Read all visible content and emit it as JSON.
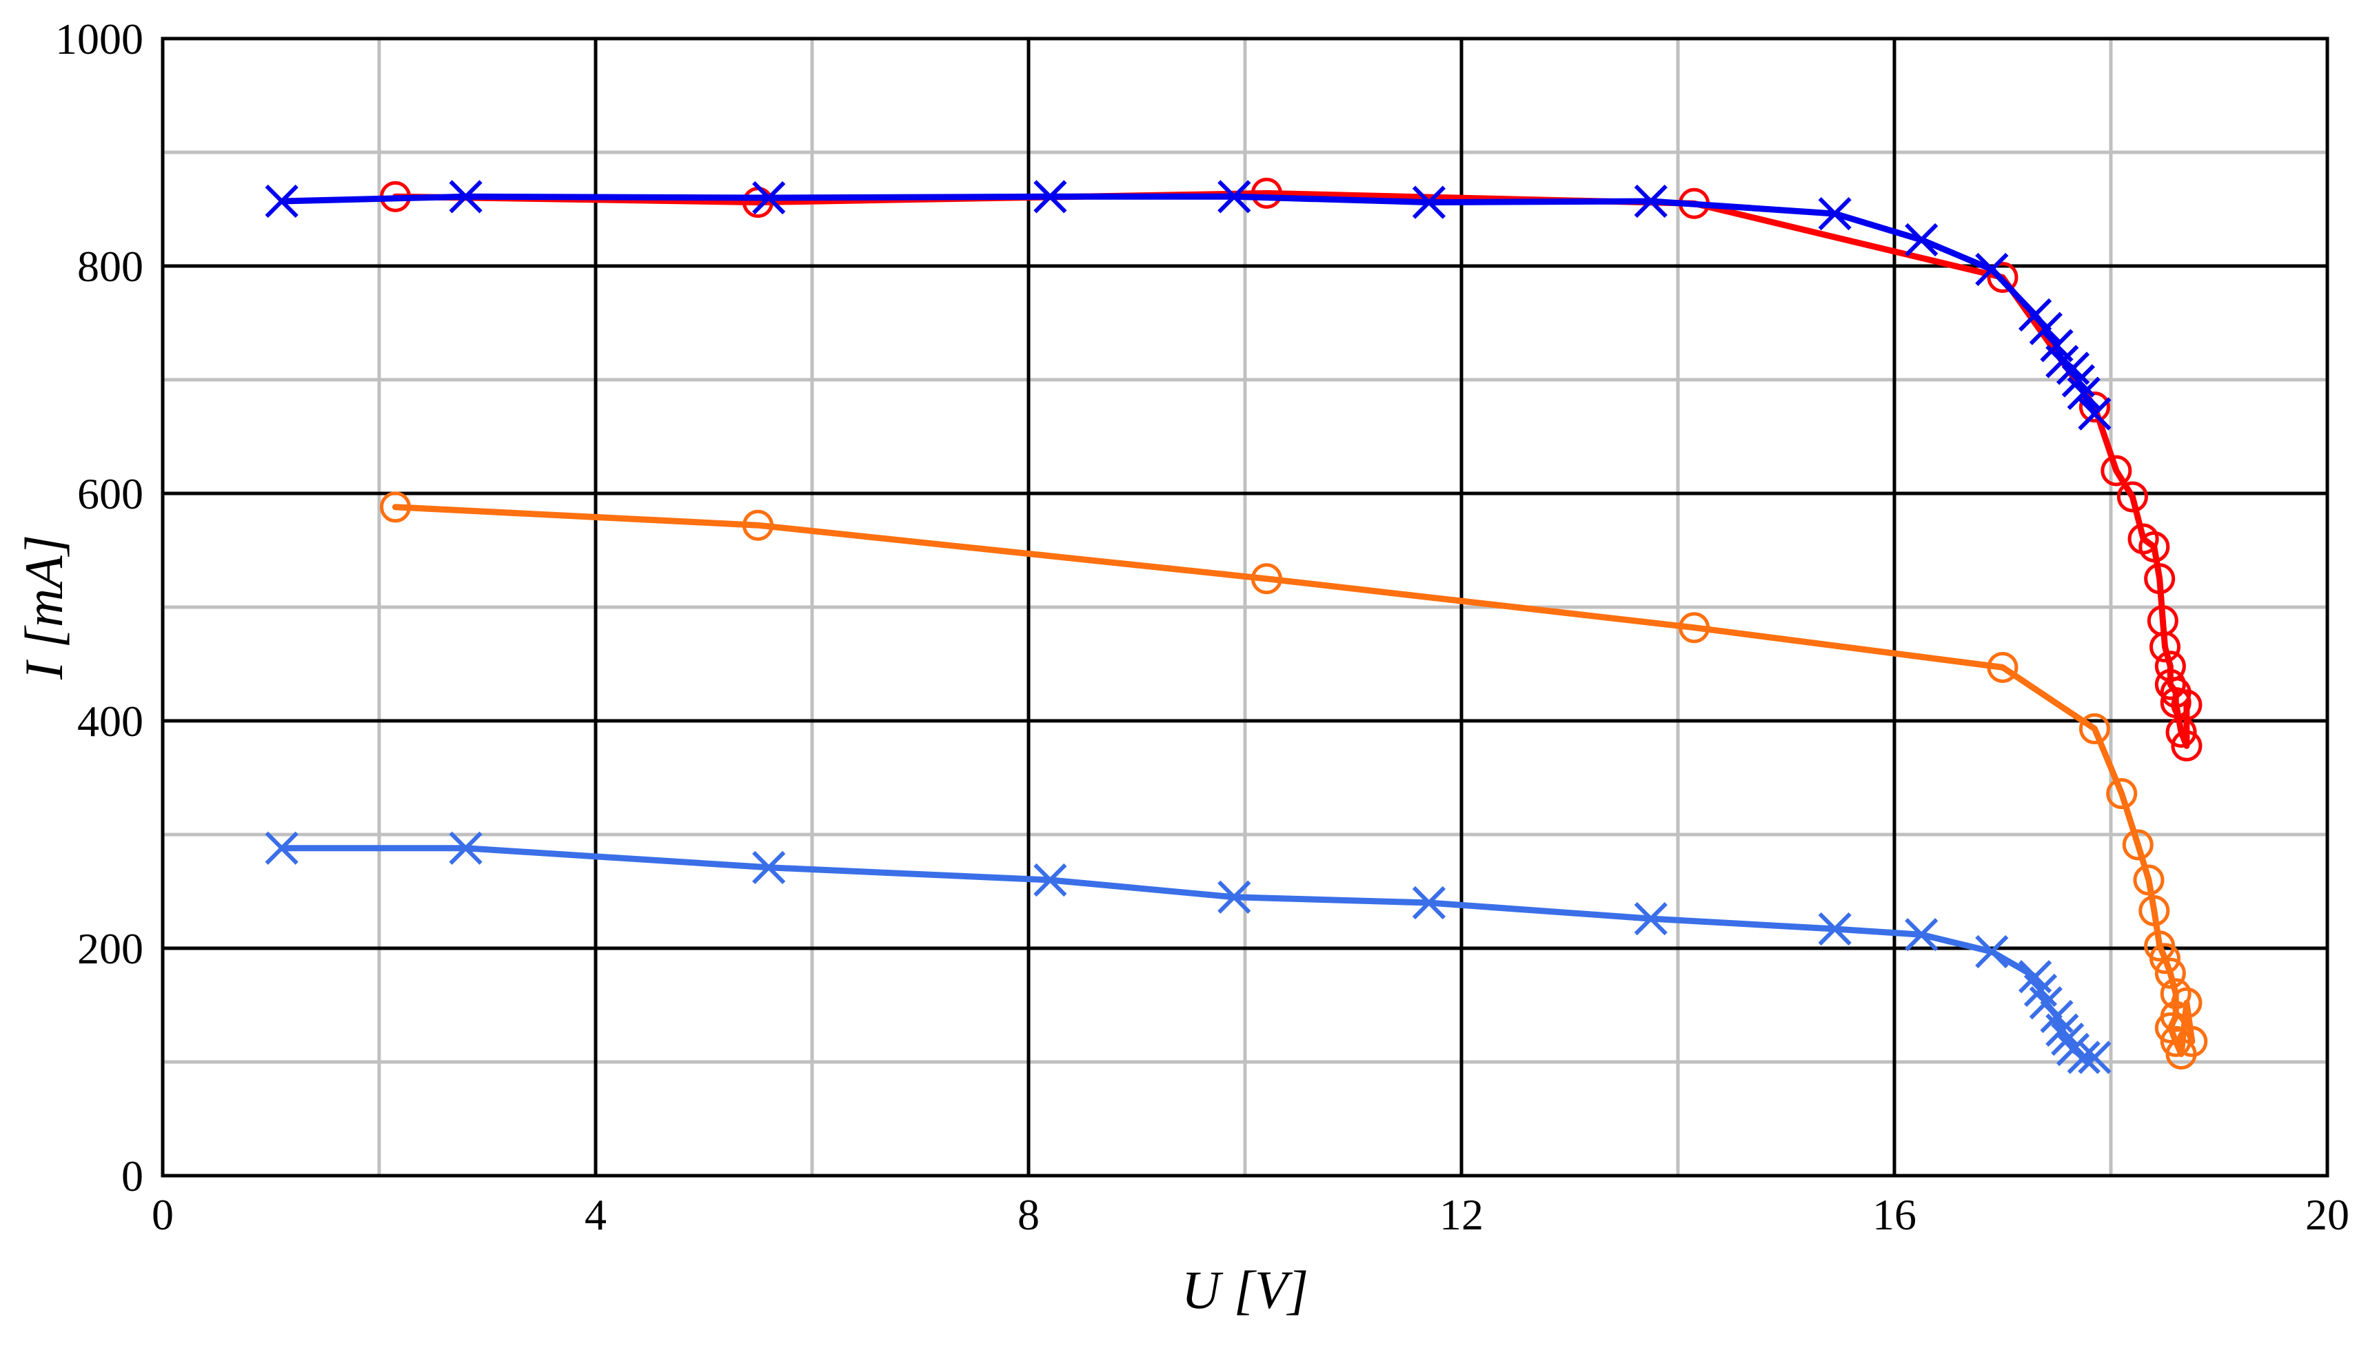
{
  "chart_data": {
    "type": "line",
    "title": "",
    "xlabel": "U [V]",
    "ylabel": "I [mA]",
    "xlim": [
      0,
      20
    ],
    "ylim": [
      0,
      1000
    ],
    "x_ticks": [
      0,
      4,
      8,
      12,
      16,
      20
    ],
    "y_ticks": [
      0,
      200,
      400,
      600,
      800,
      1000
    ],
    "x_tick_labels": [
      "0",
      "4",
      "8",
      "12",
      "16",
      "20"
    ],
    "y_tick_labels": [
      "0",
      "200",
      "400",
      "600",
      "800",
      "1000"
    ],
    "grid": true,
    "legend": "none",
    "series": [
      {
        "color": "#ff0000",
        "marker": "circle",
        "points": [
          [
            2.15,
            861
          ],
          [
            5.5,
            856
          ],
          [
            10.2,
            864
          ],
          [
            14.15,
            855
          ],
          [
            17.0,
            790
          ],
          [
            17.85,
            676
          ],
          [
            18.05,
            620
          ],
          [
            18.2,
            597
          ],
          [
            18.3,
            560
          ],
          [
            18.4,
            553
          ],
          [
            18.45,
            525
          ],
          [
            18.48,
            488
          ],
          [
            18.5,
            465
          ],
          [
            18.55,
            448
          ],
          [
            18.55,
            432
          ],
          [
            18.6,
            425
          ],
          [
            18.6,
            416
          ],
          [
            18.65,
            390
          ],
          [
            18.7,
            378
          ],
          [
            18.7,
            414
          ]
        ]
      },
      {
        "color": "#0000ee",
        "marker": "cross",
        "points": [
          [
            1.1,
            857
          ],
          [
            2.8,
            861
          ],
          [
            5.6,
            860
          ],
          [
            8.2,
            861
          ],
          [
            9.9,
            861
          ],
          [
            11.7,
            856
          ],
          [
            13.75,
            857
          ],
          [
            15.45,
            846
          ],
          [
            16.25,
            823
          ],
          [
            16.9,
            797
          ],
          [
            17.3,
            757
          ],
          [
            17.4,
            745
          ],
          [
            17.5,
            730
          ],
          [
            17.55,
            716
          ],
          [
            17.65,
            710
          ],
          [
            17.7,
            699
          ],
          [
            17.75,
            688
          ],
          [
            17.85,
            670
          ]
        ]
      },
      {
        "color": "#ff7010",
        "marker": "circle",
        "points": [
          [
            2.15,
            588
          ],
          [
            5.5,
            572
          ],
          [
            10.2,
            525
          ],
          [
            14.15,
            482
          ],
          [
            17.0,
            447
          ],
          [
            17.85,
            393
          ],
          [
            18.1,
            336
          ],
          [
            18.25,
            291
          ],
          [
            18.35,
            260
          ],
          [
            18.4,
            233
          ],
          [
            18.45,
            202
          ],
          [
            18.5,
            191
          ],
          [
            18.55,
            178
          ],
          [
            18.6,
            160
          ],
          [
            18.6,
            140
          ],
          [
            18.55,
            130
          ],
          [
            18.6,
            118
          ],
          [
            18.65,
            107
          ],
          [
            18.7,
            152
          ],
          [
            18.75,
            118
          ]
        ]
      },
      {
        "color": "#3a6fe8",
        "marker": "cross",
        "points": [
          [
            1.1,
            288
          ],
          [
            2.8,
            288
          ],
          [
            5.6,
            271
          ],
          [
            8.2,
            260
          ],
          [
            9.9,
            245
          ],
          [
            11.7,
            240
          ],
          [
            13.75,
            226
          ],
          [
            15.45,
            217
          ],
          [
            16.25,
            212
          ],
          [
            16.9,
            197
          ],
          [
            17.3,
            175
          ],
          [
            17.35,
            163
          ],
          [
            17.4,
            152
          ],
          [
            17.5,
            140
          ],
          [
            17.55,
            128
          ],
          [
            17.6,
            120
          ],
          [
            17.65,
            111
          ],
          [
            17.75,
            104
          ],
          [
            17.85,
            104
          ]
        ]
      }
    ]
  }
}
